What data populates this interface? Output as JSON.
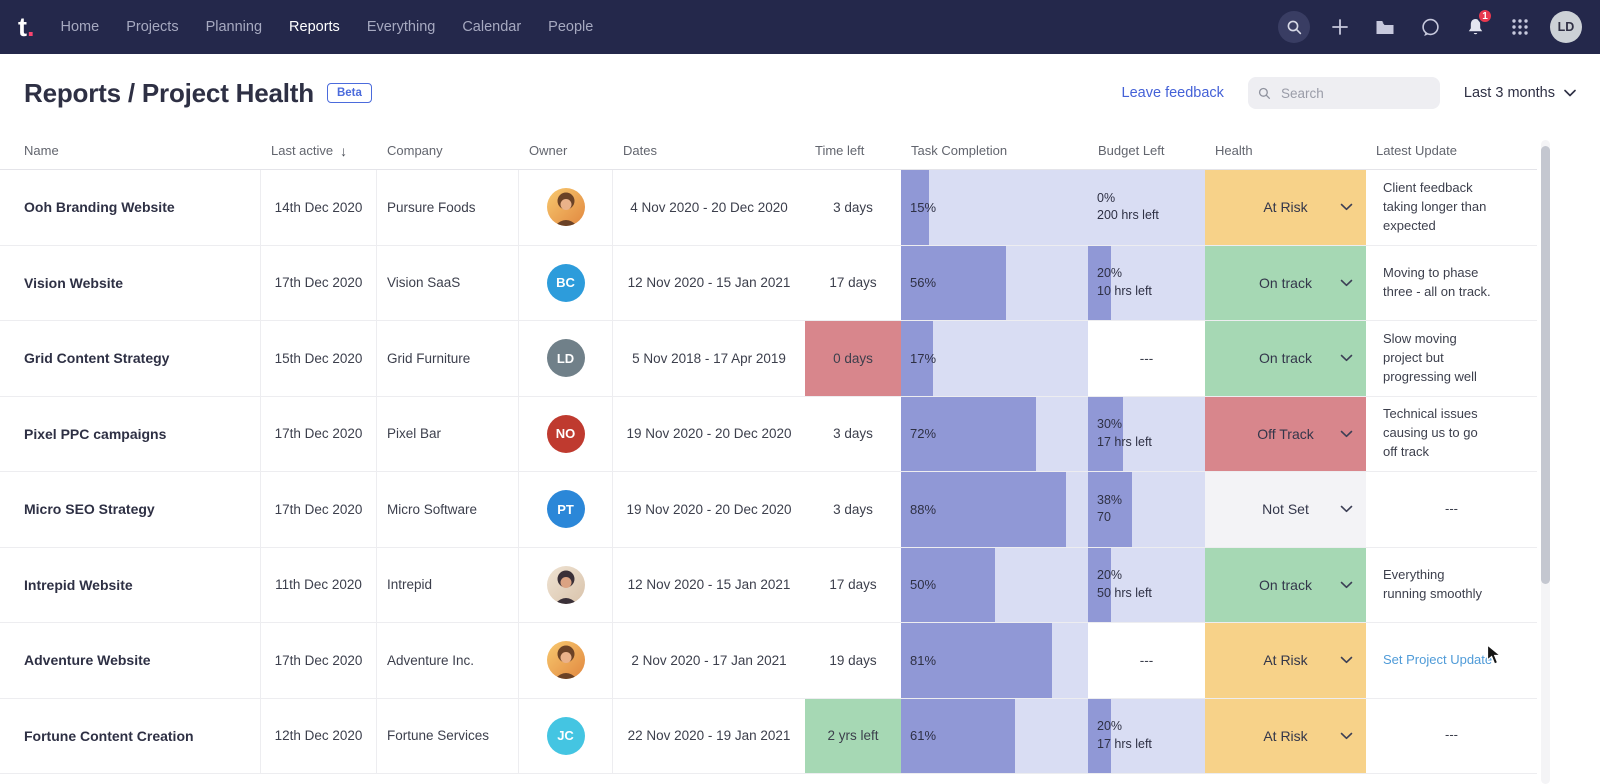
{
  "topnav": {
    "logo_text": "t",
    "logo_dot": ".",
    "items": [
      "Home",
      "Projects",
      "Planning",
      "Reports",
      "Everything",
      "Calendar",
      "People"
    ],
    "active_item": "Reports",
    "notification_count": "1",
    "user_initials": "LD"
  },
  "page_header": {
    "title": "Reports / Project Health",
    "beta_badge": "Beta",
    "leave_feedback": "Leave feedback",
    "search_placeholder": "Search",
    "date_range": "Last 3 months"
  },
  "palette": {
    "at_risk": "#f7d289",
    "on_track": "#a6d8b4",
    "off_track": "#d8868c",
    "not_set": "#f3f3f6",
    "time_red": "#d8868c",
    "time_green": "#a6d8b4",
    "bar_fill": "#9098d6",
    "bar_bg": "#d9ddf3",
    "link_blue": "#4f9bd8",
    "feedback_blue": "#4461d7",
    "notification_red": "#e8384f"
  },
  "photo_palettes": {
    "blonde": {
      "bg1": "#f8c96f",
      "bg2": "#e1873f",
      "hair": "#6b4226",
      "skin": "#eab28a"
    },
    "brunette": {
      "bg1": "#efe3d3",
      "bg2": "#d9c3ab",
      "hair": "#3a3038",
      "skin": "#dba383"
    }
  },
  "table": {
    "columns": [
      {
        "label": "Name"
      },
      {
        "label": "Last active",
        "sorted": true
      },
      {
        "label": "Company"
      },
      {
        "label": "Owner"
      },
      {
        "label": "Dates"
      },
      {
        "label": "Time left"
      },
      {
        "label": "Task Completion"
      },
      {
        "label": "Budget Left"
      },
      {
        "label": "Health"
      },
      {
        "label": "Latest Update"
      }
    ],
    "rows": [
      {
        "name": "Ooh Branding Website",
        "last_active": "14th Dec 2020",
        "company": "Pursure Foods",
        "owner": {
          "kind": "photo",
          "palette": "blonde"
        },
        "dates": "4 Nov 2020 - 20 Dec 2020",
        "time_left": {
          "text": "3 days",
          "status": "none"
        },
        "completion_pct": 15,
        "completion_label": "15%",
        "budget": {
          "pct": 0,
          "label": "0%",
          "detail": "200 hrs left"
        },
        "health": {
          "label": "At Risk",
          "status": "at_risk"
        },
        "update": {
          "text": "Client feedback\ntaking longer than\nexpected"
        }
      },
      {
        "name": "Vision Website",
        "last_active": "17th Dec 2020",
        "company": "Vision SaaS",
        "owner": {
          "kind": "initials",
          "text": "BC",
          "bg": "#2d9cdb"
        },
        "dates": "12 Nov 2020 - 15 Jan 2021",
        "time_left": {
          "text": "17 days",
          "status": "none"
        },
        "completion_pct": 56,
        "completion_label": "56%",
        "budget": {
          "pct": 20,
          "label": "20%",
          "detail": "10 hrs left"
        },
        "health": {
          "label": "On track",
          "status": "on_track"
        },
        "update": {
          "text": "Moving to phase\nthree - all on track."
        }
      },
      {
        "name": "Grid Content Strategy",
        "last_active": "15th Dec 2020",
        "company": "Grid Furniture",
        "owner": {
          "kind": "initials",
          "text": "LD",
          "bg": "#708089"
        },
        "dates": "5 Nov 2018 - 17 Apr 2019",
        "time_left": {
          "text": "0 days",
          "status": "red"
        },
        "completion_pct": 17,
        "completion_label": "17%",
        "budget": {
          "empty": true,
          "label": "---"
        },
        "health": {
          "label": "On track",
          "status": "on_track"
        },
        "update": {
          "text": "Slow moving\nproject  but\nprogressing well"
        }
      },
      {
        "name": "Pixel PPC campaigns",
        "last_active": "17th Dec 2020",
        "company": "Pixel Bar",
        "owner": {
          "kind": "initials",
          "text": "NO",
          "bg": "#bf3a2f"
        },
        "dates": "19 Nov 2020 - 20 Dec 2020",
        "time_left": {
          "text": "3 days",
          "status": "none"
        },
        "completion_pct": 72,
        "completion_label": "72%",
        "budget": {
          "pct": 30,
          "label": "30%",
          "detail": "17 hrs left"
        },
        "health": {
          "label": "Off Track",
          "status": "off_track"
        },
        "update": {
          "text": "Technical issues\ncausing us to go\noff track"
        }
      },
      {
        "name": "Micro SEO Strategy",
        "last_active": "17th Dec 2020",
        "company": "Micro Software",
        "owner": {
          "kind": "initials",
          "text": "PT",
          "bg": "#2b87d8"
        },
        "dates": "19 Nov 2020 - 20 Dec 2020",
        "time_left": {
          "text": "3 days",
          "status": "none"
        },
        "completion_pct": 88,
        "completion_label": "88%",
        "budget": {
          "pct": 38,
          "label": "38%",
          "detail": "70"
        },
        "health": {
          "label": "Not Set",
          "status": "not_set"
        },
        "update": {
          "text": "---",
          "empty": true
        }
      },
      {
        "name": "Intrepid Website",
        "last_active": "11th Dec 2020",
        "company": "Intrepid",
        "owner": {
          "kind": "photo",
          "palette": "brunette"
        },
        "dates": "12 Nov 2020 - 15 Jan 2021",
        "time_left": {
          "text": "17 days",
          "status": "none"
        },
        "completion_pct": 50,
        "completion_label": "50%",
        "budget": {
          "pct": 20,
          "label": "20%",
          "detail": "50 hrs left"
        },
        "health": {
          "label": "On track",
          "status": "on_track"
        },
        "update": {
          "text": "Everything\nrunning smoothly"
        }
      },
      {
        "name": "Adventure Website",
        "last_active": "17th Dec 2020",
        "company": "Adventure Inc.",
        "owner": {
          "kind": "photo",
          "palette": "blonde"
        },
        "dates": "2 Nov 2020 - 17 Jan 2021",
        "time_left": {
          "text": "19 days",
          "status": "none"
        },
        "completion_pct": 81,
        "completion_label": "81%",
        "budget": {
          "empty": true,
          "label": "---"
        },
        "health": {
          "label": "At Risk",
          "status": "at_risk"
        },
        "update": {
          "link": "Set Project Update"
        }
      },
      {
        "name": "Fortune Content Creation",
        "last_active": "12th Dec 2020",
        "company": "Fortune Services",
        "owner": {
          "kind": "initials",
          "text": "JC",
          "bg": "#44c5e2"
        },
        "dates": "22 Nov 2020 - 19 Jan 2021",
        "time_left": {
          "text": "2 yrs left",
          "status": "green"
        },
        "completion_pct": 61,
        "completion_label": "61%",
        "budget": {
          "pct": 20,
          "label": "20%",
          "detail": "17 hrs left"
        },
        "health": {
          "label": "At Risk",
          "status": "at_risk"
        },
        "update": {
          "text": "---",
          "empty": true
        }
      }
    ]
  }
}
